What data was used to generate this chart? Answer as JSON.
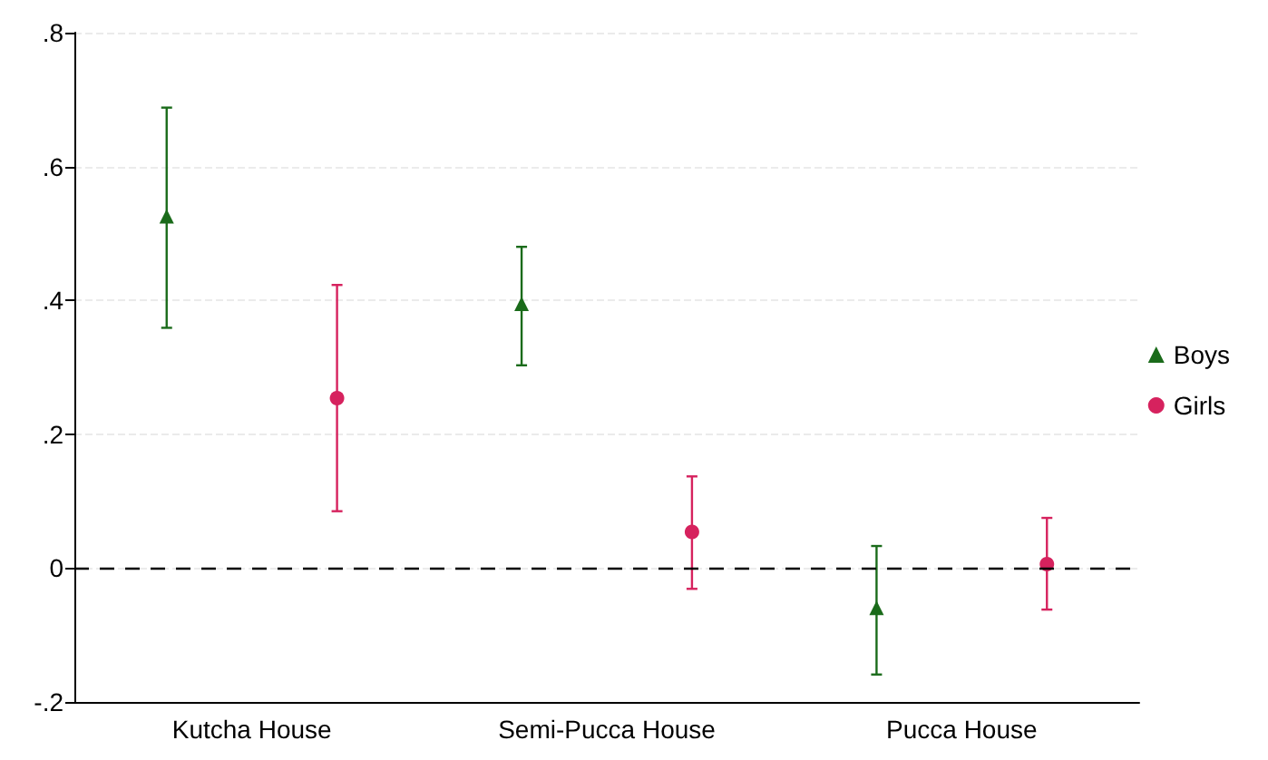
{
  "chart_data": {
    "type": "scatter",
    "categories": [
      "Kutcha House",
      "Semi-Pucca House",
      "Pucca House"
    ],
    "series": [
      {
        "name": "Boys",
        "color": "#1a6b1a",
        "marker": "triangle",
        "values": [
          0.523,
          0.392,
          -0.062
        ],
        "errors": [
          [
            0.359,
            0.688
          ],
          [
            0.303,
            0.48
          ],
          [
            -0.159,
            0.033
          ]
        ]
      },
      {
        "name": "Girls",
        "color": "#d6225e",
        "marker": "circle",
        "values": [
          0.254,
          0.054,
          0.006
        ],
        "errors": [
          [
            0.085,
            0.423
          ],
          [
            -0.031,
            0.137
          ],
          [
            -0.062,
            0.075
          ]
        ]
      }
    ],
    "ylim": [
      -0.2,
      0.8
    ],
    "yticks": [
      {
        "value": -0.2,
        "label": "-.2"
      },
      0,
      {
        "value": 0.2,
        "label": ".2"
      },
      {
        "value": 0.4,
        "label": ".4"
      },
      {
        "value": 0.6,
        "label": ".6"
      },
      {
        "value": 0.8,
        "label": ".8"
      }
    ],
    "grid": "y",
    "legend": "right",
    "ref_lines": [
      {
        "axis": "y",
        "value": 0,
        "line_style": "dashed",
        "color": "#000000"
      }
    ]
  }
}
